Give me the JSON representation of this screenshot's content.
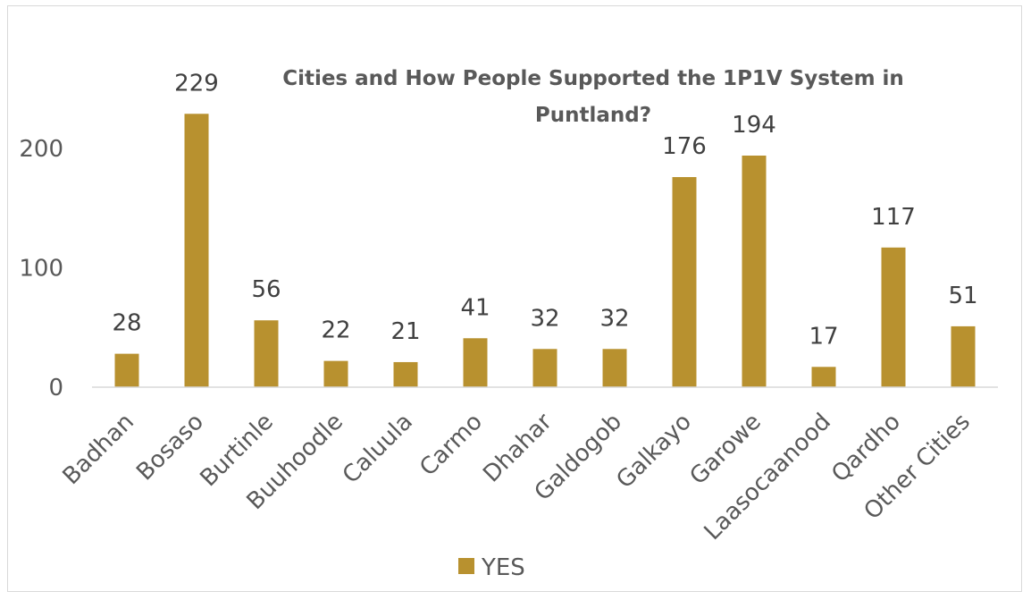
{
  "chart_data": {
    "type": "bar",
    "title_lines": [
      "Cities and How People Supported the 1P1V System in",
      "Puntland?"
    ],
    "categories": [
      "Badhan",
      "Bosaso",
      "Burtinle",
      "Buuhoodle",
      "Caluula",
      "Carmo",
      "Dhahar",
      "Galdogob",
      "Galkayo",
      "Garowe",
      "Laasocaanood",
      "Qardho",
      "Other Cities"
    ],
    "series": [
      {
        "name": "YES",
        "color": "#b8912f",
        "values": [
          28,
          229,
          56,
          22,
          21,
          41,
          32,
          32,
          176,
          194,
          17,
          117,
          51
        ]
      }
    ],
    "yticks": [
      "0",
      "100",
      "200"
    ],
    "ylim": [
      0,
      250
    ],
    "xlabel": "",
    "ylabel": "",
    "grid": false,
    "legend_position": "bottom"
  }
}
